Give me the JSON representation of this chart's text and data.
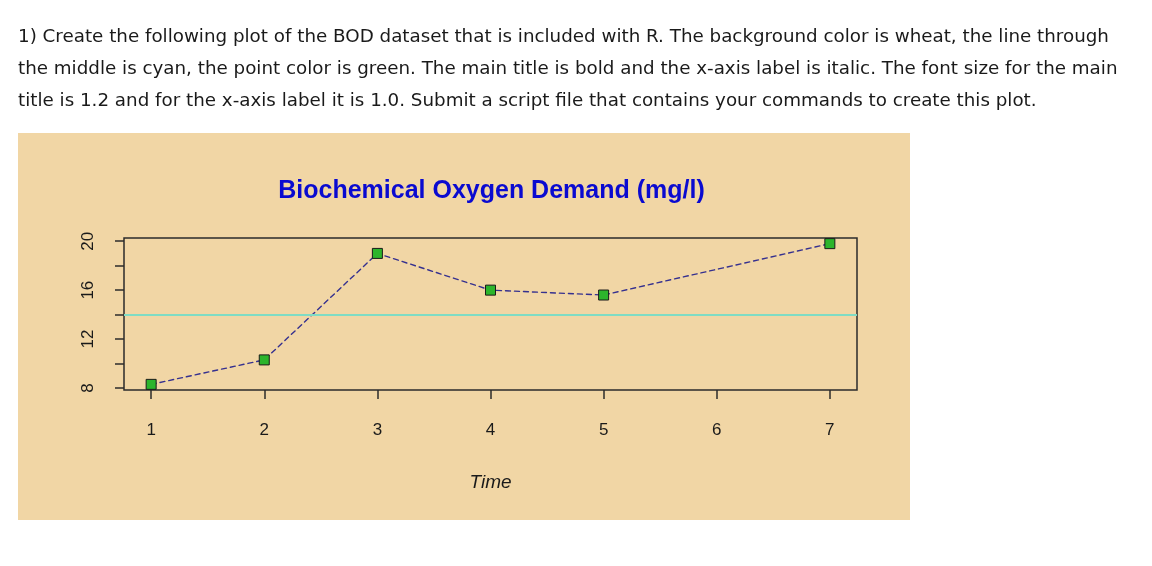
{
  "chart_data": {
    "type": "line",
    "title": "Biochemical Oxygen Demand (mg/l)",
    "xlabel": "Time",
    "annotations": [
      "1) Create the following plot of the BOD dataset that is included with R. The background color is wheat, the line through the middle is cyan, the point color is green. The main title is bold and the x-axis label is italic. The font size for the main title is 1.2 and for the x-axis label it is 1.0. Submit a script file that contains your commands to create this plot."
    ],
    "x": [
      1,
      2,
      3,
      4,
      5,
      7
    ],
    "series": [
      {
        "color": "#35308f",
        "colors": [
          "#2cb52c",
          "#2cb52c",
          "#2cb52c",
          "#2cb52c",
          "#2cb52c",
          "#2cb52c"
        ],
        "values": [
          8.3,
          10.3,
          19.0,
          16.0,
          15.6,
          19.8
        ]
      }
    ],
    "marker": "square",
    "line_style": "dashed",
    "xlim": [
      0.76,
      7.24
    ],
    "xticks": [
      1,
      2,
      3,
      4,
      5,
      6,
      7
    ],
    "ylim": [
      7.84,
      20.26
    ],
    "yticks": [
      8,
      {
        "value": 10,
        "label": null
      },
      12,
      {
        "value": 14,
        "label": null
      },
      16,
      {
        "value": 18,
        "label": null
      },
      20
    ],
    "ref_lines": [
      {
        "axis": "y",
        "value": 14,
        "color": "#7fdcc4"
      }
    ]
  }
}
